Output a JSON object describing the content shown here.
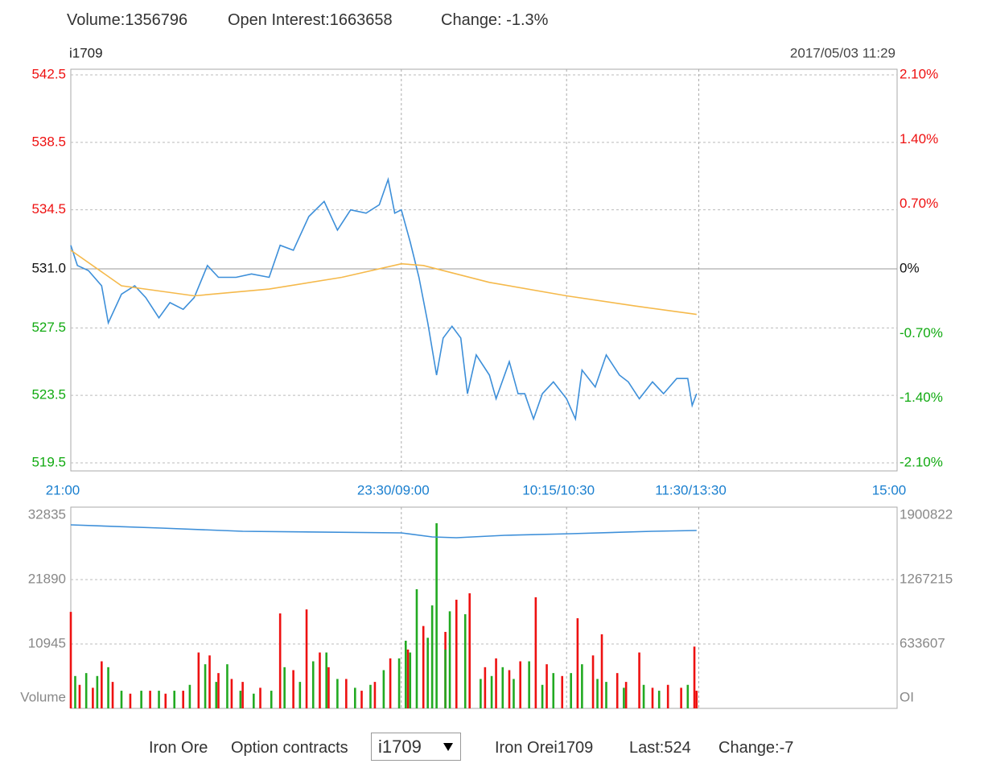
{
  "header": {
    "volume": "Volume:1356796",
    "open_interest": "Open Interest:1663658",
    "change": "Change: -1.3%"
  },
  "chart_data": [
    {
      "type": "line",
      "title": "i1709",
      "subtitle": "2017/05/03 11:29",
      "xlim": [
        0,
        375
      ],
      "xticks": [
        {
          "value": 0,
          "label": "21:00"
        },
        {
          "value": 150,
          "label": "23:30/09:00"
        },
        {
          "value": 225,
          "label": "10:15/10:30"
        },
        {
          "value": 285,
          "label": "11:30/13:30"
        },
        {
          "value": 375,
          "label": "15:00"
        }
      ],
      "ylim": [
        519.5,
        542.5
      ],
      "yticks": [
        542.5,
        538.5,
        534.5,
        {
          "value": 531,
          "label": "531.0"
        },
        527.5,
        523.5,
        519.5
      ],
      "y2lim": [
        -2.1,
        2.1
      ],
      "y2ticks": [
        {
          "value": 2.1,
          "label": "2.10%"
        },
        {
          "value": 1.4,
          "label": "1.40%"
        },
        {
          "value": 0.7,
          "label": "0.70%"
        },
        {
          "value": 0,
          "label": "0%"
        },
        {
          "value": -0.7,
          "label": "-0.70%"
        },
        {
          "value": -1.4,
          "label": "-1.40%"
        },
        {
          "value": -2.1,
          "label": "-2.10%"
        }
      ],
      "grid": true,
      "up_color": "#ee1111",
      "down_color": "#11aa11",
      "axis_color": "#1a7fcf",
      "series": [
        {
          "color": "#3d8fd9",
          "x": [
            0,
            3,
            8,
            14,
            17,
            23,
            29,
            34,
            40,
            45,
            51,
            56,
            62,
            67,
            75,
            82,
            90,
            95,
            101,
            108,
            115,
            121,
            127,
            134,
            140,
            144,
            147,
            150,
            154,
            158,
            162,
            166,
            169,
            173,
            177,
            180,
            184,
            190,
            193,
            199,
            203,
            206,
            210,
            214,
            219,
            225,
            229,
            232,
            238,
            243,
            249,
            253,
            258,
            264,
            269,
            275,
            280,
            282,
            284
          ],
          "values": [
            532.4,
            531.2,
            530.9,
            530.0,
            527.8,
            529.5,
            530.0,
            529.3,
            528.1,
            529.0,
            528.6,
            529.3,
            531.2,
            530.5,
            530.5,
            530.7,
            530.5,
            532.4,
            532.1,
            534.1,
            535.0,
            533.3,
            534.5,
            534.3,
            534.8,
            536.3,
            534.3,
            534.5,
            532.6,
            530.5,
            527.8,
            524.7,
            526.9,
            527.6,
            526.9,
            523.6,
            525.9,
            524.7,
            523.3,
            525.5,
            523.6,
            523.6,
            522.1,
            523.6,
            524.3,
            523.3,
            522.1,
            525.0,
            524.0,
            525.9,
            524.7,
            524.3,
            523.3,
            524.3,
            523.6,
            524.5,
            524.5,
            522.9,
            523.6
          ]
        },
        {
          "color": "#f5b94b",
          "x": [
            0,
            23,
            56,
            90,
            123,
            150,
            160,
            190,
            225,
            256,
            284
          ],
          "values": [
            532.1,
            530.0,
            529.4,
            529.8,
            530.5,
            531.3,
            531.2,
            530.2,
            529.4,
            528.8,
            528.3
          ]
        }
      ]
    },
    {
      "type": "combo",
      "ylabel": "Volume",
      "y2label": "OI",
      "xlim": [
        0,
        375
      ],
      "ylim": [
        0,
        32835
      ],
      "yticks": [
        10945,
        21890,
        32835
      ],
      "y2lim": [
        0,
        1900822
      ],
      "y2ticks": [
        633607,
        1267215,
        1900822
      ],
      "grid": true,
      "series": [
        {
          "type": "bar",
          "color": "#ee1111",
          "x": [
            0,
            4,
            10,
            14,
            19,
            27,
            36,
            43,
            51,
            58,
            63,
            67,
            73,
            78,
            86,
            95,
            101,
            107,
            113,
            117,
            125,
            132,
            138,
            145,
            153,
            160,
            170,
            175,
            181,
            188,
            193,
            199,
            204,
            211,
            216,
            223,
            230,
            237,
            241,
            248,
            252,
            258,
            264,
            271,
            277,
            283,
            284
          ],
          "values": [
            16400,
            4000,
            3500,
            8000,
            4500,
            2500,
            3000,
            2500,
            3000,
            9500,
            9000,
            6000,
            5000,
            4500,
            3500,
            16140,
            6500,
            16820,
            9500,
            7000,
            5000,
            3000,
            4500,
            8500,
            10000,
            14000,
            13000,
            18470,
            19560,
            7000,
            8500,
            6500,
            8000,
            18880,
            7500,
            5500,
            15320,
            9000,
            12590,
            6000,
            4500,
            9500,
            3500,
            4000,
            3500,
            10500,
            3000
          ]
        },
        {
          "type": "bar",
          "color": "#22aa22",
          "x": [
            2,
            7,
            12,
            17,
            23,
            32,
            40,
            47,
            54,
            61,
            66,
            71,
            77,
            83,
            91,
            97,
            104,
            110,
            116,
            121,
            129,
            136,
            142,
            149,
            152,
            154,
            157,
            162,
            164,
            166,
            170,
            172,
            179,
            186,
            191,
            196,
            201,
            208,
            214,
            219,
            227,
            232,
            239,
            243,
            251,
            260,
            267,
            280
          ],
          "values": [
            5500,
            6000,
            5500,
            7000,
            3000,
            3000,
            3000,
            3000,
            4000,
            7500,
            4500,
            7500,
            3000,
            2500,
            3000,
            7000,
            4500,
            8000,
            9500,
            5000,
            3500,
            4000,
            6500,
            8500,
            11500,
            9500,
            20250,
            12000,
            17500,
            31465,
            10000,
            16500,
            16000,
            5000,
            5500,
            7000,
            5000,
            8000,
            4000,
            6000,
            6000,
            7500,
            5000,
            4500,
            3500,
            4000,
            3000,
            4000
          ]
        },
        {
          "type": "line",
          "axis": "y2",
          "color": "#3d8fd9",
          "x": [
            0,
            41,
            78,
            150,
            164,
            175,
            197,
            227,
            264,
            284
          ],
          "values": [
            1805800,
            1774000,
            1742400,
            1726600,
            1687000,
            1679000,
            1703000,
            1718600,
            1742400,
            1750300
          ]
        }
      ]
    }
  ],
  "footer": {
    "product": "Iron Ore",
    "option_label": "Option contracts",
    "contract": "i1709",
    "quote_name": "Iron Orei1709",
    "last": "Last:524",
    "change": "Change:-7"
  }
}
